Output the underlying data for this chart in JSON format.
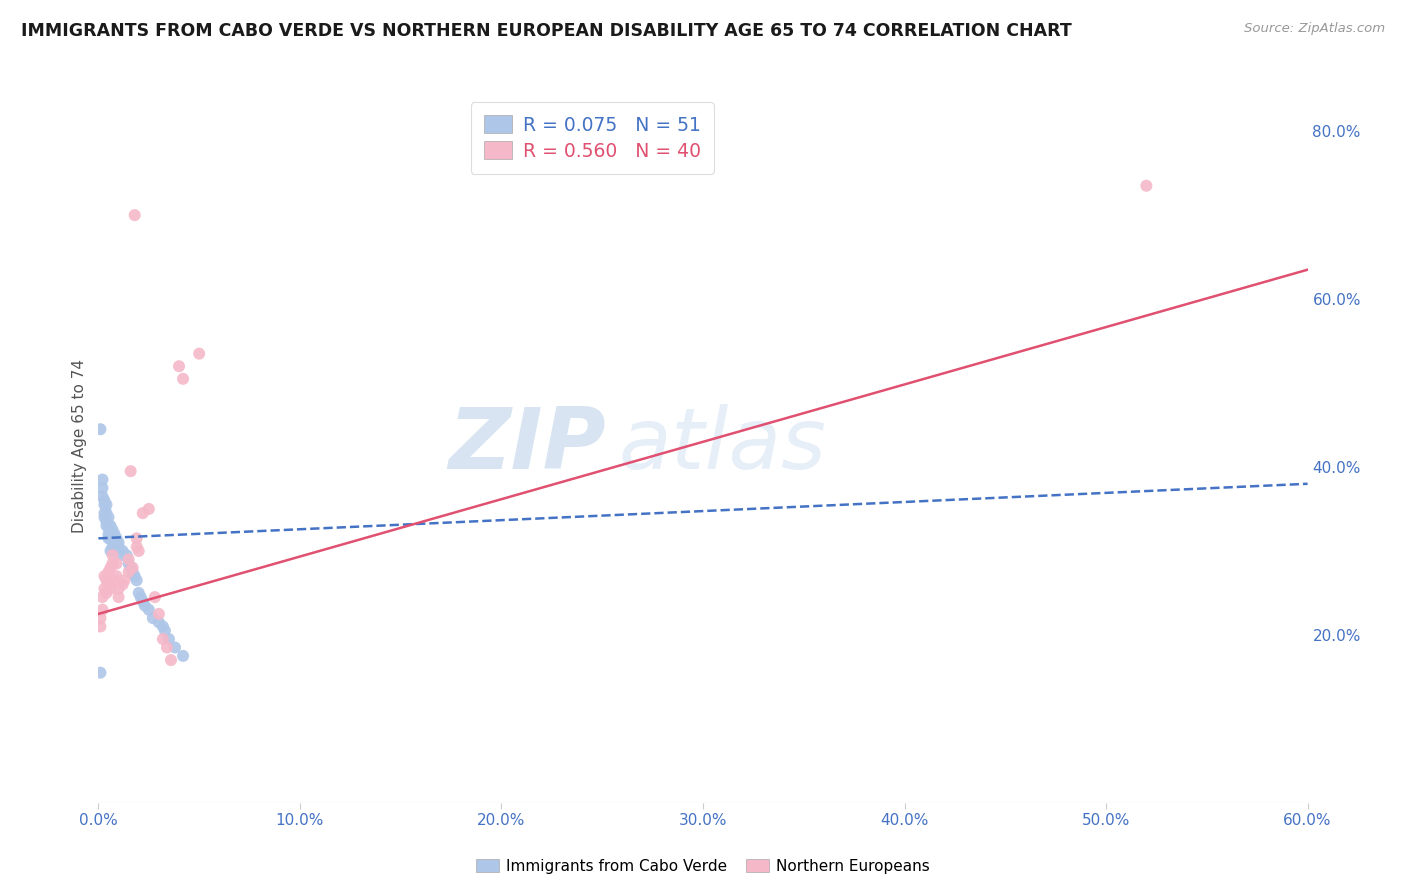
{
  "title": "IMMIGRANTS FROM CABO VERDE VS NORTHERN EUROPEAN DISABILITY AGE 65 TO 74 CORRELATION CHART",
  "source": "Source: ZipAtlas.com",
  "ylabel": "Disability Age 65 to 74",
  "ylabel_right_ticks": [
    "20.0%",
    "40.0%",
    "60.0%",
    "80.0%"
  ],
  "ylabel_right_vals": [
    0.2,
    0.4,
    0.6,
    0.8
  ],
  "xlim": [
    0.0,
    0.6
  ],
  "ylim": [
    0.0,
    0.85
  ],
  "cabo_verde_R": 0.075,
  "cabo_verde_N": 51,
  "northern_european_R": 0.56,
  "northern_european_N": 40,
  "cabo_verde_color": "#aec6e8",
  "northern_european_color": "#f5b8c8",
  "cabo_verde_line_color": "#4472c4",
  "northern_european_line_color": "#e05070",
  "watermark_zip": "ZIP",
  "watermark_atlas": "atlas",
  "cabo_verde_points": [
    [
      0.001,
      0.445
    ],
    [
      0.002,
      0.385
    ],
    [
      0.002,
      0.375
    ],
    [
      0.002,
      0.365
    ],
    [
      0.003,
      0.36
    ],
    [
      0.003,
      0.355
    ],
    [
      0.003,
      0.345
    ],
    [
      0.003,
      0.34
    ],
    [
      0.004,
      0.355
    ],
    [
      0.004,
      0.345
    ],
    [
      0.004,
      0.335
    ],
    [
      0.004,
      0.33
    ],
    [
      0.005,
      0.34
    ],
    [
      0.005,
      0.33
    ],
    [
      0.005,
      0.32
    ],
    [
      0.005,
      0.315
    ],
    [
      0.006,
      0.33
    ],
    [
      0.006,
      0.325
    ],
    [
      0.006,
      0.315
    ],
    [
      0.006,
      0.3
    ],
    [
      0.007,
      0.325
    ],
    [
      0.007,
      0.315
    ],
    [
      0.007,
      0.305
    ],
    [
      0.008,
      0.32
    ],
    [
      0.008,
      0.31
    ],
    [
      0.008,
      0.3
    ],
    [
      0.009,
      0.315
    ],
    [
      0.009,
      0.305
    ],
    [
      0.01,
      0.31
    ],
    [
      0.01,
      0.305
    ],
    [
      0.012,
      0.3
    ],
    [
      0.012,
      0.295
    ],
    [
      0.014,
      0.295
    ],
    [
      0.015,
      0.285
    ],
    [
      0.016,
      0.28
    ],
    [
      0.017,
      0.275
    ],
    [
      0.018,
      0.27
    ],
    [
      0.019,
      0.265
    ],
    [
      0.02,
      0.25
    ],
    [
      0.021,
      0.245
    ],
    [
      0.022,
      0.24
    ],
    [
      0.023,
      0.235
    ],
    [
      0.025,
      0.23
    ],
    [
      0.027,
      0.22
    ],
    [
      0.03,
      0.215
    ],
    [
      0.032,
      0.21
    ],
    [
      0.033,
      0.205
    ],
    [
      0.035,
      0.195
    ],
    [
      0.038,
      0.185
    ],
    [
      0.042,
      0.175
    ],
    [
      0.001,
      0.155
    ]
  ],
  "northern_european_points": [
    [
      0.001,
      0.21
    ],
    [
      0.001,
      0.22
    ],
    [
      0.002,
      0.23
    ],
    [
      0.002,
      0.245
    ],
    [
      0.003,
      0.255
    ],
    [
      0.003,
      0.27
    ],
    [
      0.004,
      0.265
    ],
    [
      0.004,
      0.25
    ],
    [
      0.005,
      0.275
    ],
    [
      0.005,
      0.26
    ],
    [
      0.006,
      0.28
    ],
    [
      0.006,
      0.255
    ],
    [
      0.007,
      0.285
    ],
    [
      0.007,
      0.295
    ],
    [
      0.008,
      0.265
    ],
    [
      0.009,
      0.285
    ],
    [
      0.009,
      0.27
    ],
    [
      0.01,
      0.255
    ],
    [
      0.01,
      0.245
    ],
    [
      0.012,
      0.26
    ],
    [
      0.013,
      0.265
    ],
    [
      0.015,
      0.275
    ],
    [
      0.015,
      0.29
    ],
    [
      0.016,
      0.395
    ],
    [
      0.017,
      0.28
    ],
    [
      0.019,
      0.315
    ],
    [
      0.019,
      0.305
    ],
    [
      0.02,
      0.3
    ],
    [
      0.022,
      0.345
    ],
    [
      0.025,
      0.35
    ],
    [
      0.028,
      0.245
    ],
    [
      0.03,
      0.225
    ],
    [
      0.032,
      0.195
    ],
    [
      0.034,
      0.185
    ],
    [
      0.036,
      0.17
    ],
    [
      0.04,
      0.52
    ],
    [
      0.042,
      0.505
    ],
    [
      0.05,
      0.535
    ],
    [
      0.52,
      0.735
    ],
    [
      0.018,
      0.7
    ]
  ],
  "cabo_verde_line": {
    "x0": 0.0,
    "x1": 0.6,
    "y0": 0.315,
    "y1": 0.38
  },
  "northern_european_line": {
    "x0": 0.0,
    "x1": 0.6,
    "y0": 0.225,
    "y1": 0.635
  }
}
